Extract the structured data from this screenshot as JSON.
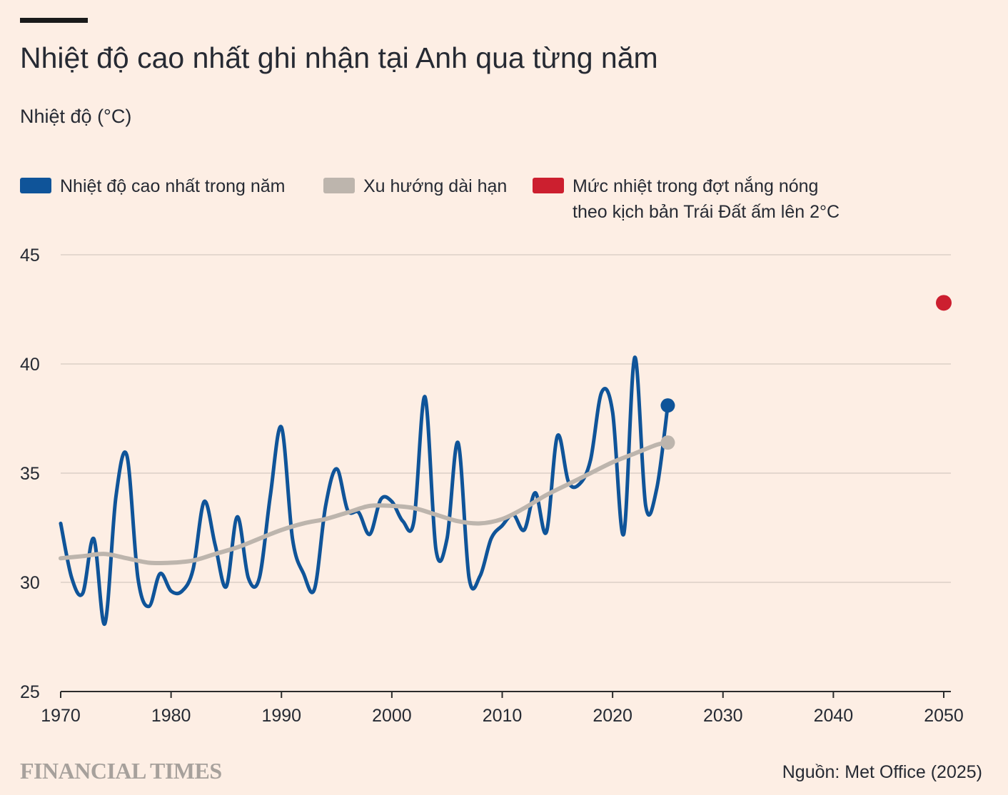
{
  "chart_data": {
    "type": "line",
    "title": "Nhiệt độ cao nhất ghi nhận tại Anh qua từng năm",
    "ylabel": "Nhiệt độ (°C)",
    "xlabel": "",
    "xlim": [
      1970,
      2050
    ],
    "ylim": [
      25,
      45
    ],
    "x_ticks": [
      "1970",
      "1980",
      "1990",
      "2000",
      "2010",
      "2020",
      "2030",
      "2040",
      "2050"
    ],
    "y_ticks": [
      "25",
      "30",
      "35",
      "40",
      "45"
    ],
    "grid": true,
    "legend_position": "top",
    "series": [
      {
        "name": "Nhiệt độ cao nhất trong năm",
        "color": "#0f5499",
        "x": [
          1970,
          1971,
          1972,
          1973,
          1974,
          1975,
          1976,
          1977,
          1978,
          1979,
          1980,
          1981,
          1982,
          1983,
          1984,
          1985,
          1986,
          1987,
          1988,
          1989,
          1990,
          1991,
          1992,
          1993,
          1994,
          1995,
          1996,
          1997,
          1998,
          1999,
          2000,
          2001,
          2002,
          2003,
          2004,
          2005,
          2006,
          2007,
          2008,
          2009,
          2010,
          2011,
          2012,
          2013,
          2014,
          2015,
          2016,
          2017,
          2018,
          2019,
          2020,
          2021,
          2022,
          2023,
          2024,
          2025
        ],
        "values": [
          32.7,
          30.2,
          29.5,
          32.0,
          28.1,
          33.9,
          35.8,
          30.2,
          28.9,
          30.4,
          29.6,
          29.6,
          30.6,
          33.7,
          31.7,
          29.8,
          33.0,
          30.2,
          30.2,
          34.0,
          37.1,
          32.0,
          30.4,
          29.7,
          33.5,
          35.2,
          33.3,
          33.2,
          32.2,
          33.8,
          33.7,
          32.8,
          32.8,
          38.5,
          31.5,
          32.0,
          36.4,
          30.2,
          30.3,
          32.0,
          32.6,
          33.1,
          32.4,
          34.1,
          32.3,
          36.7,
          34.6,
          34.5,
          35.6,
          38.7,
          37.8,
          32.2,
          40.3,
          33.5,
          34.3,
          38.1
        ]
      },
      {
        "name": "Xu hướng dài hạn",
        "color": "#bdb5ad",
        "x": [
          1970,
          1972,
          1974,
          1976,
          1978,
          1980,
          1982,
          1984,
          1986,
          1988,
          1990,
          1992,
          1994,
          1996,
          1998,
          2000,
          2002,
          2004,
          2006,
          2008,
          2010,
          2012,
          2014,
          2016,
          2018,
          2020,
          2022,
          2024,
          2025
        ],
        "values": [
          31.1,
          31.2,
          31.3,
          31.1,
          30.9,
          30.9,
          31.0,
          31.3,
          31.6,
          32.0,
          32.4,
          32.7,
          32.9,
          33.2,
          33.5,
          33.5,
          33.4,
          33.1,
          32.8,
          32.7,
          32.9,
          33.4,
          34.0,
          34.5,
          35.0,
          35.5,
          35.9,
          36.3,
          36.4
        ]
      },
      {
        "name": "Mức nhiệt trong đợt nắng nóng\ntheo kịch bản Trái Đất ấm lên 2°C",
        "color": "#cc1f2f",
        "x": [
          2050
        ],
        "values": [
          42.8
        ]
      }
    ]
  },
  "source": "Nguồn: Met Office (2025)",
  "publisher": "FINANCIAL TIMES"
}
